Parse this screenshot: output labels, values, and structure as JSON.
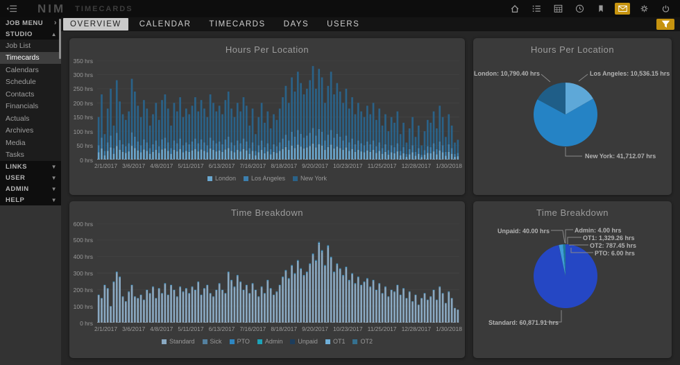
{
  "colors": {
    "accent": "#c6930f",
    "panel": "#3a3a3a",
    "grid": "#444444",
    "axis_text": "#9a9a9a"
  },
  "header": {
    "logo": "NIM",
    "app_title": "TIMECARDS",
    "icons": [
      {
        "name": "home-icon",
        "active": false
      },
      {
        "name": "list-icon",
        "active": false
      },
      {
        "name": "calendar-grid-icon",
        "active": false
      },
      {
        "name": "clock-icon",
        "active": false
      },
      {
        "name": "bookmark-icon",
        "active": false
      },
      {
        "name": "mail-icon",
        "active": true
      },
      {
        "name": "gear-icon",
        "active": false
      },
      {
        "name": "power-icon",
        "active": false
      }
    ]
  },
  "tabs": [
    {
      "label": "OVERVIEW",
      "active": true
    },
    {
      "label": "CALENDAR",
      "active": false
    },
    {
      "label": "TIMECARDS",
      "active": false
    },
    {
      "label": "DAYS",
      "active": false
    },
    {
      "label": "USERS",
      "active": false
    }
  ],
  "sidebar": {
    "groups": [
      {
        "label": "JOB MENU",
        "state": "collapsed-right",
        "items": []
      },
      {
        "label": "STUDIO",
        "state": "expanded",
        "items": [
          {
            "label": "Job List",
            "selected": false
          },
          {
            "label": "Timecards",
            "selected": true
          },
          {
            "label": "Calendars",
            "selected": false
          },
          {
            "label": "Schedule",
            "selected": false
          },
          {
            "label": "Contacts",
            "selected": false
          },
          {
            "label": "Financials",
            "selected": false
          },
          {
            "label": "Actuals",
            "selected": false
          },
          {
            "label": "Archives",
            "selected": false
          },
          {
            "label": "Media",
            "selected": false
          },
          {
            "label": "Tasks",
            "selected": false
          }
        ]
      },
      {
        "label": "LINKS",
        "state": "collapsed",
        "items": []
      },
      {
        "label": "USER",
        "state": "collapsed",
        "items": []
      },
      {
        "label": "ADMIN",
        "state": "collapsed",
        "items": []
      },
      {
        "label": "HELP",
        "state": "collapsed",
        "items": []
      }
    ]
  },
  "chart_data": [
    {
      "id": "hours-bar",
      "type": "bar",
      "stacked": true,
      "title": "Hours Per Location",
      "unit": "hrs",
      "ylim": [
        0,
        350
      ],
      "ytick_step": 50,
      "grid": true,
      "legend_position": "bottom",
      "x_ticklabels": [
        "2/1/2017",
        "3/6/2017",
        "4/8/2017",
        "5/11/2017",
        "6/13/2017",
        "7/16/2017",
        "8/18/2017",
        "9/20/2017",
        "10/23/2017",
        "11/25/2017",
        "12/28/2017",
        "1/30/2018"
      ],
      "series": [
        {
          "name": "London",
          "color": "#6aa7cf",
          "share": 0.171
        },
        {
          "name": "Los Angeles",
          "color": "#3c7fae",
          "share": 0.167
        },
        {
          "name": "New York",
          "color": "#2a6288",
          "share": 0.662
        }
      ],
      "totals_hrs": [
        150,
        230,
        90,
        180,
        250,
        120,
        280,
        205,
        160,
        140,
        170,
        285,
        240,
        190,
        150,
        210,
        180,
        120,
        160,
        200,
        140,
        210,
        230,
        180,
        120,
        200,
        170,
        220,
        150,
        180,
        160,
        190,
        220,
        170,
        210,
        180,
        150,
        230,
        200,
        170,
        190,
        160,
        210,
        240,
        180,
        150,
        200,
        170,
        220,
        190,
        120,
        180,
        90,
        150,
        200,
        130,
        170,
        110,
        160,
        140,
        180,
        220,
        260,
        200,
        290,
        240,
        310,
        270,
        230,
        250,
        280,
        330,
        250,
        320,
        290,
        200,
        260,
        310,
        230,
        270,
        240,
        200,
        250,
        180,
        220,
        160,
        200,
        170,
        150,
        190,
        160,
        200,
        140,
        180,
        120,
        160,
        100,
        150,
        130,
        170,
        90,
        130,
        60,
        110,
        150,
        80,
        120,
        50,
        100,
        140,
        130,
        170,
        110,
        190,
        150,
        80,
        160,
        120,
        60,
        70
      ]
    },
    {
      "id": "hours-pie",
      "type": "pie",
      "title": "Hours Per Location",
      "start_angle_deg": 0,
      "slices": [
        {
          "name": "Los Angeles",
          "value": 10536.15,
          "display": "Los Angeles: 10,536.15 hrs",
          "color": "#5ea8d8"
        },
        {
          "name": "New York",
          "value": 41712.07,
          "display": "New York: 41,712.07 hrs",
          "color": "#2583c5"
        },
        {
          "name": "London",
          "value": 10790.4,
          "display": "London: 10,790.40 hrs",
          "color": "#1f5e88"
        }
      ]
    },
    {
      "id": "time-bar",
      "type": "bar",
      "stacked": true,
      "title": "Time Breakdown",
      "unit": "hrs",
      "ylim": [
        0,
        600
      ],
      "ytick_step": 100,
      "grid": true,
      "legend_position": "bottom",
      "x_ticklabels": [
        "2/1/2017",
        "3/6/2017",
        "4/8/2017",
        "5/11/2017",
        "6/13/2017",
        "7/16/2017",
        "8/18/2017",
        "9/20/2017",
        "10/23/2017",
        "11/25/2017",
        "12/28/2017",
        "1/30/2018"
      ],
      "series": [
        {
          "name": "Standard",
          "color": "#8aa9c2",
          "share": 0.9656
        },
        {
          "name": "Sick",
          "color": "#54809f",
          "share": 0.0
        },
        {
          "name": "PTO",
          "color": "#2e86c1",
          "share": 0.0001
        },
        {
          "name": "Admin",
          "color": "#1ca3b8",
          "share": 0.0001
        },
        {
          "name": "Unpaid",
          "color": "#1d3d5c",
          "share": 0.0006
        },
        {
          "name": "OT1",
          "color": "#6fafd8",
          "share": 0.0211
        },
        {
          "name": "OT2",
          "color": "#35708f",
          "share": 0.0125
        }
      ],
      "totals_hrs": [
        170,
        150,
        230,
        210,
        100,
        250,
        310,
        280,
        160,
        130,
        190,
        230,
        160,
        150,
        170,
        140,
        200,
        180,
        220,
        150,
        210,
        180,
        240,
        170,
        230,
        200,
        160,
        220,
        190,
        210,
        180,
        220,
        200,
        250,
        170,
        210,
        230,
        180,
        160,
        200,
        240,
        200,
        180,
        310,
        260,
        220,
        290,
        250,
        200,
        230,
        180,
        240,
        200,
        160,
        220,
        180,
        260,
        210,
        170,
        190,
        230,
        280,
        320,
        270,
        350,
        300,
        380,
        330,
        290,
        310,
        360,
        420,
        380,
        490,
        440,
        350,
        470,
        400,
        310,
        360,
        330,
        290,
        340,
        260,
        300,
        240,
        280,
        230,
        250,
        270,
        220,
        260,
        200,
        240,
        180,
        220,
        160,
        200,
        190,
        230,
        170,
        210,
        150,
        190,
        130,
        170,
        110,
        150,
        180,
        140,
        160,
        200,
        140,
        220,
        180,
        120,
        190,
        150,
        90,
        80
      ]
    },
    {
      "id": "time-pie",
      "type": "pie",
      "title": "Time Breakdown",
      "start_angle_deg": 0,
      "slices": [
        {
          "name": "Standard",
          "value": 60871.91,
          "display": "Standard: 60,871.91 hrs",
          "color": "#2547c4"
        },
        {
          "name": "Unpaid",
          "value": 40.0,
          "display": "Unpaid: 40.00 hrs",
          "color": "#1d3d5c"
        },
        {
          "name": "Admin",
          "value": 4.0,
          "display": "Admin: 4.00 hrs",
          "color": "#1ca3b8"
        },
        {
          "name": "OT1",
          "value": 1329.26,
          "display": "OT1: 1,329.26 hrs",
          "color": "#3f9bd8"
        },
        {
          "name": "OT2",
          "value": 787.45,
          "display": "OT2: 787.45 hrs",
          "color": "#1d7a96"
        },
        {
          "name": "PTO",
          "value": 6.0,
          "display": "PTO: 6.00 hrs",
          "color": "#2e86c1"
        }
      ]
    }
  ]
}
